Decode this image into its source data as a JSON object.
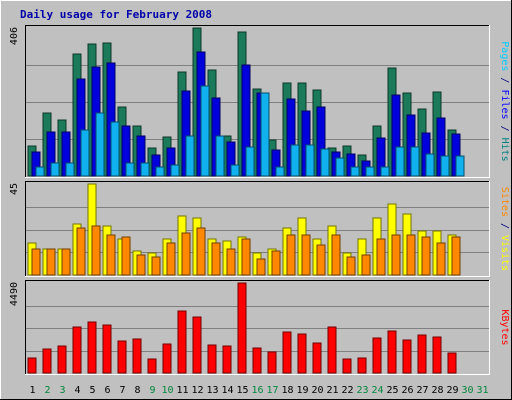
{
  "chart_data": {
    "type": "bar",
    "title": "Daily usage for February 2008",
    "days": [
      "1",
      "2",
      "3",
      "4",
      "5",
      "6",
      "7",
      "8",
      "9",
      "10",
      "11",
      "12",
      "13",
      "14",
      "15",
      "16",
      "17",
      "18",
      "19",
      "20",
      "21",
      "22",
      "23",
      "24",
      "25",
      "26",
      "27",
      "28",
      "29",
      "30",
      "31"
    ],
    "weekend_days": [
      "2",
      "3",
      "9",
      "10",
      "16",
      "17",
      "23",
      "24",
      "30",
      "31"
    ],
    "panels": [
      {
        "id": "top",
        "scale_label": "406",
        "ymax": 406,
        "side_labels": [
          {
            "text": "Pages",
            "color": "#00ccff"
          },
          {
            "text": " / ",
            "color": "#000080"
          },
          {
            "text": "Files",
            "color": "#0000ff"
          },
          {
            "text": " / ",
            "color": "#000080"
          },
          {
            "text": "Hits",
            "color": "#008080"
          }
        ],
        "series": [
          {
            "name": "Hits",
            "color": "#1a7a5a",
            "values": [
              82,
              173,
              153,
              336,
              361,
              366,
              189,
              137,
              77,
              107,
              285,
              406,
              290,
              109,
              395,
              239,
              98,
              254,
              254,
              236,
              76,
              83,
              57,
              137,
              296,
              229,
              184,
              231,
              127,
              0,
              0
            ]
          },
          {
            "name": "Files",
            "color": "#0000dd",
            "values": [
              67,
              122,
              122,
              265,
              300,
              311,
              136,
              109,
              57,
              76,
              232,
              340,
              213,
              92,
              304,
              228,
              72,
              212,
              178,
              189,
              66,
              60,
              40,
              103,
              221,
              166,
              117,
              158,
              114,
              0,
              0
            ]
          },
          {
            "name": "Pages",
            "color": "#11b0ee",
            "values": [
              24,
              36,
              36,
              125,
              172,
              147,
              36,
              36,
              24,
              30,
              111,
              248,
              111,
              30,
              79,
              227,
              24,
              85,
              85,
              73,
              49,
              24,
              24,
              24,
              79,
              79,
              61,
              55,
              55,
              0,
              0
            ]
          }
        ]
      },
      {
        "id": "middle",
        "scale_label": "45",
        "ymax": 45,
        "side_labels": [
          {
            "text": "Sites",
            "color": "#ff8800"
          },
          {
            "text": " / ",
            "color": "#000080"
          },
          {
            "text": "Visits",
            "color": "#ffff00"
          }
        ],
        "series": [
          {
            "name": "Visits",
            "color": "#ffff00",
            "values": [
              16,
              13,
              13,
              25,
              45,
              24,
              18,
              12,
              11,
              18,
              29,
              28,
              18,
              17,
              19,
              11,
              13,
              23,
              28,
              18,
              24,
              11,
              18,
              28,
              35,
              30,
              22,
              22,
              20,
              0,
              0
            ]
          },
          {
            "name": "Sites",
            "color": "#ff8800",
            "values": [
              13,
              13,
              13,
              23,
              24,
              20,
              19,
              10,
              9,
              16,
              21,
              23,
              16,
              13,
              18,
              8,
              12,
              20,
              20,
              15,
              20,
              9,
              10,
              18,
              20,
              20,
              19,
              16,
              19,
              0,
              0
            ]
          }
        ]
      },
      {
        "id": "bottom",
        "scale_label": "4490",
        "ymax": 4490,
        "side_labels": [
          {
            "text": "KBytes",
            "color": "#ff0000"
          }
        ],
        "series": [
          {
            "name": "KBytes",
            "color": "#ff0000",
            "values": [
              730,
              1220,
              1330,
              2290,
              2540,
              2380,
              1610,
              1720,
              700,
              1470,
              3100,
              2800,
              1410,
              1330,
              4490,
              1230,
              1030,
              2040,
              1960,
              1500,
              2290,
              700,
              750,
              1750,
              2090,
              1660,
              1900,
              1820,
              1000,
              0,
              0
            ]
          }
        ]
      }
    ]
  },
  "colors": {
    "page_bg": "#c0c0c0",
    "plot_bg": "#c0c0c0",
    "title": "#0000aa",
    "weekday_label": "#000000",
    "weekend_label": "#00873c",
    "grid": "#808080"
  }
}
